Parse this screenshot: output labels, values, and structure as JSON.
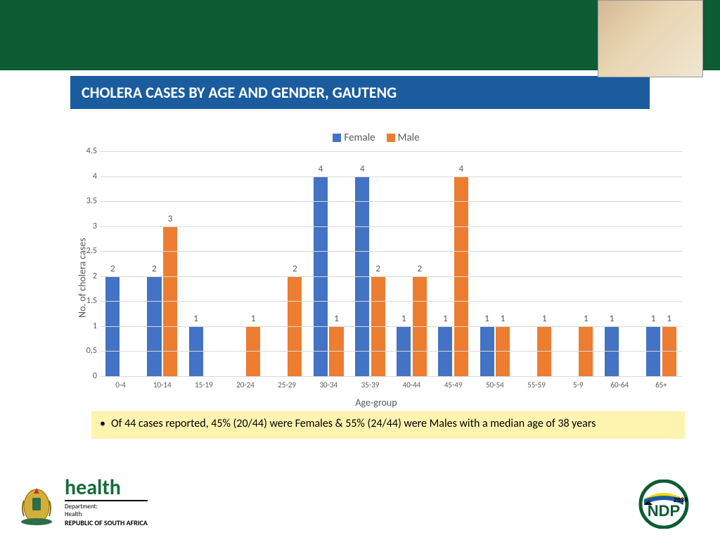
{
  "header": {
    "band_color": "#0d5c34"
  },
  "title": {
    "text": "CHOLERA CASES BY AGE AND GENDER, GAUTENG",
    "bg_color": "#1a5c9e",
    "text_color": "#ffffff"
  },
  "chart": {
    "type": "bar",
    "ylabel": "No. of cholera cases",
    "xlabel": "Age-group",
    "ylim": [
      0,
      4.5
    ],
    "ytick_step": 0.5,
    "background_color": "#ffffff",
    "grid_color": "#d9d9d9",
    "label_fontsize": 14,
    "tick_fontsize": 12,
    "bar_width": 0.34,
    "legend": {
      "items": [
        {
          "label": "Female",
          "color": "#4472c4"
        },
        {
          "label": "Male",
          "color": "#ed7d31"
        }
      ]
    },
    "categories": [
      "0-4",
      "10-14",
      "15-19",
      "20-24",
      "25-29",
      "30-34",
      "35-39",
      "40-44",
      "45-49",
      "50-54",
      "55-59",
      "5-9",
      "60-64",
      "65+"
    ],
    "series": {
      "Female": {
        "color": "#4472c4",
        "values": [
          2,
          2,
          1,
          null,
          null,
          4,
          4,
          1,
          1,
          1,
          null,
          null,
          1,
          1
        ]
      },
      "Male": {
        "color": "#ed7d31",
        "values": [
          null,
          3,
          null,
          1,
          2,
          1,
          2,
          2,
          4,
          1,
          1,
          1,
          null,
          1
        ]
      }
    }
  },
  "bullet": {
    "text": "Of 44 cases reported, 45% (20/44) were Females & 55% (24/44) were Males with a median age of 38 years",
    "bg_color": "#fff3b0"
  },
  "footer": {
    "health_label": "health",
    "department_line1": "Department:",
    "department_line2": "Health",
    "department_line3": "REPUBLIC OF SOUTH AFRICA",
    "ndp_text": "NDP",
    "ndp_year": "2030"
  }
}
